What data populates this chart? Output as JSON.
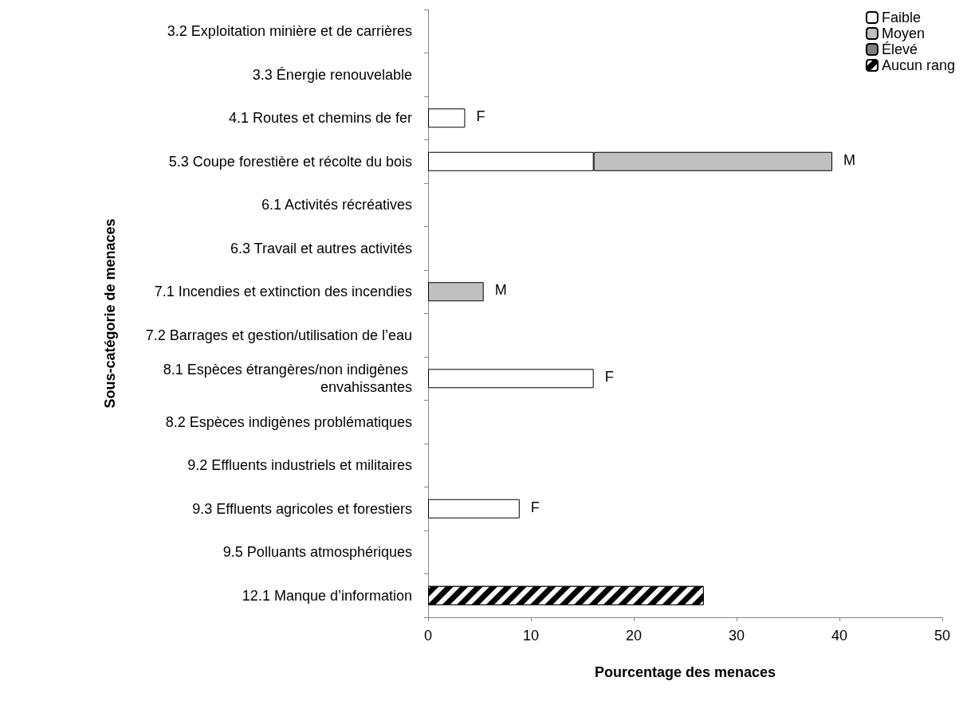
{
  "chart_data": {
    "type": "bar",
    "orientation": "horizontal",
    "stacked": true,
    "xlabel": "Pourcentage des menaces",
    "ylabel": "Sous-catégorie de menaces",
    "categories": [
      "3.2 Exploitation minière et de carrières",
      "3.3 Énergie renouvelable",
      "4.1 Routes et chemins de fer",
      "5.3 Coupe forestière et récolte du bois",
      "6.1 Activités récréatives",
      "6.3 Travail et autres activités",
      "7.1 Incendies et extinction des incendies",
      "7.2 Barrages et gestion/utilisation de l’eau",
      "8.1 Espèces étrangères/non indigènes envahissantes",
      "8.2 Espèces indigènes problématiques",
      "9.2 Effluents industriels et militaires",
      "9.3 Effluents agricoles et forestiers",
      "9.5 Polluants atmosphériques",
      "12.1 Manque d’information"
    ],
    "series": [
      {
        "name": "Faible",
        "color": "#ffffff",
        "values": [
          null,
          null,
          3.6,
          16.1,
          null,
          null,
          null,
          null,
          16.1,
          null,
          null,
          8.9,
          null,
          null
        ]
      },
      {
        "name": "Moyen",
        "color": "#c0c0c0",
        "values": [
          null,
          null,
          null,
          23.2,
          null,
          null,
          5.4,
          null,
          null,
          null,
          null,
          null,
          null,
          null
        ]
      },
      {
        "name": "Élevé",
        "color": "#808080",
        "values": [
          null,
          null,
          null,
          null,
          null,
          null,
          null,
          null,
          null,
          null,
          null,
          null,
          null,
          null
        ]
      },
      {
        "name": "Aucun rang",
        "color": "#000000",
        "values": [
          null,
          null,
          null,
          null,
          null,
          null,
          null,
          null,
          null,
          null,
          null,
          null,
          null,
          26.8
        ]
      }
    ],
    "xlim": [
      0,
      50
    ],
    "xticks": [
      0,
      10,
      20,
      30,
      40,
      50
    ],
    "grid": false,
    "legend": "top right",
    "annotations": [
      {
        "text": "F",
        "x": 3.6,
        "y": "4.1 Routes et chemins de fer"
      },
      {
        "text": "M",
        "x": 39.3,
        "y": "5.3 Coupe forestière et récolte du bois"
      },
      {
        "text": "M",
        "x": 5.4,
        "y": "7.1 Incendies et extinction des incendies"
      },
      {
        "text": "F",
        "x": 16.1,
        "y": "8.1 Espèces étrangères/non indigènes envahissantes"
      },
      {
        "text": "F",
        "x": 8.9,
        "y": "9.3 Effluents agricoles et forestiers"
      }
    ]
  }
}
